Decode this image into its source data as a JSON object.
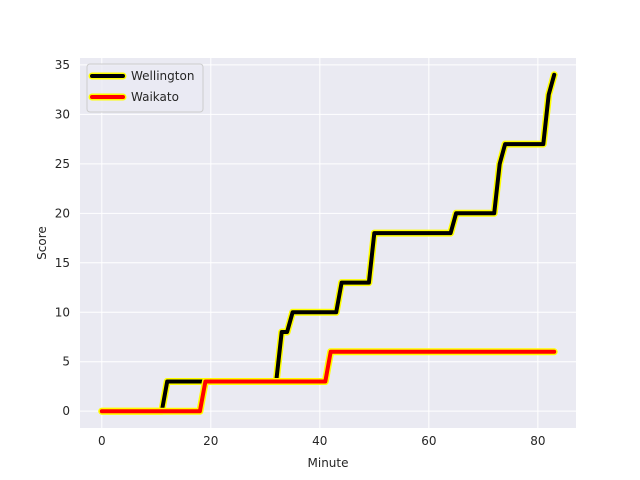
{
  "chart_data": {
    "type": "line",
    "title": "",
    "xlabel": "Minute",
    "ylabel": "Score",
    "xlim": [
      -4,
      87
    ],
    "ylim": [
      -1.7,
      35.7
    ],
    "xticks": [
      0,
      20,
      40,
      60,
      80
    ],
    "yticks": [
      0,
      5,
      10,
      15,
      20,
      25,
      30,
      35
    ],
    "grid": true,
    "legend_position": "upper-left",
    "series": [
      {
        "name": "Wellington",
        "color": "#000000",
        "outline": "#ffff00",
        "points": [
          [
            0,
            0
          ],
          [
            11,
            0
          ],
          [
            12,
            3
          ],
          [
            32,
            3
          ],
          [
            33,
            8
          ],
          [
            34,
            8
          ],
          [
            35,
            10
          ],
          [
            43,
            10
          ],
          [
            44,
            13
          ],
          [
            49,
            13
          ],
          [
            50,
            18
          ],
          [
            64,
            18
          ],
          [
            65,
            20
          ],
          [
            72,
            20
          ],
          [
            73,
            25
          ],
          [
            74,
            27
          ],
          [
            81,
            27
          ],
          [
            82,
            32
          ],
          [
            83,
            34
          ]
        ]
      },
      {
        "name": "Waikato",
        "color": "#ff0000",
        "outline": "#ffff00",
        "points": [
          [
            0,
            0
          ],
          [
            18,
            0
          ],
          [
            19,
            3
          ],
          [
            41,
            3
          ],
          [
            42,
            6
          ],
          [
            83,
            6
          ]
        ]
      }
    ]
  }
}
